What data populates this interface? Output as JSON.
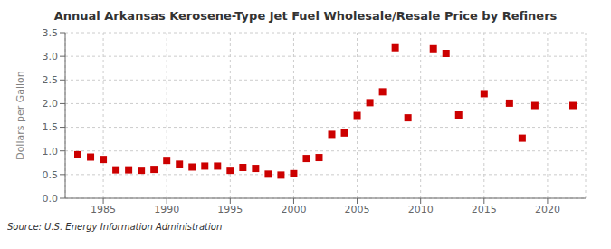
{
  "chart_data": {
    "type": "scatter",
    "title": "Annual Arkansas Kerosene-Type Jet Fuel Wholesale/Resale Price by Refiners",
    "ylabel": "Dollars per Gallon",
    "annotations": [
      "Source: U.S. Energy Information Administration"
    ],
    "x": [
      1983,
      1984,
      1985,
      1986,
      1987,
      1988,
      1989,
      1990,
      1991,
      1992,
      1993,
      1994,
      1995,
      1996,
      1997,
      1998,
      1999,
      2000,
      2001,
      2002,
      2003,
      2004,
      2005,
      2006,
      2007,
      2008,
      2009,
      2011,
      2012,
      2013,
      2015,
      2017,
      2018,
      2019,
      2022
    ],
    "values": [
      0.92,
      0.87,
      0.82,
      0.6,
      0.6,
      0.59,
      0.61,
      0.8,
      0.72,
      0.66,
      0.68,
      0.68,
      0.59,
      0.65,
      0.63,
      0.51,
      0.49,
      0.52,
      0.84,
      0.86,
      1.35,
      1.38,
      1.75,
      2.02,
      2.25,
      3.18,
      1.7,
      3.16,
      3.06,
      1.76,
      2.21,
      2.01,
      1.27,
      1.96,
      1.96
    ],
    "color": "#cc0000",
    "marker": "square",
    "xlim": [
      1982.0,
      2023.0
    ],
    "ylim": [
      0.0,
      3.5
    ],
    "xticks": [
      1985,
      1990,
      1995,
      2000,
      2005,
      2010,
      2015,
      2020
    ],
    "yticks": [
      {
        "value": 0.0,
        "label": "0.0"
      },
      0.5,
      {
        "value": 1.0,
        "label": "1.0"
      },
      1.5,
      {
        "value": 2.0,
        "label": "2.0"
      },
      2.5,
      {
        "value": 3.0,
        "label": "3.0"
      },
      3.5
    ],
    "grid": true
  }
}
